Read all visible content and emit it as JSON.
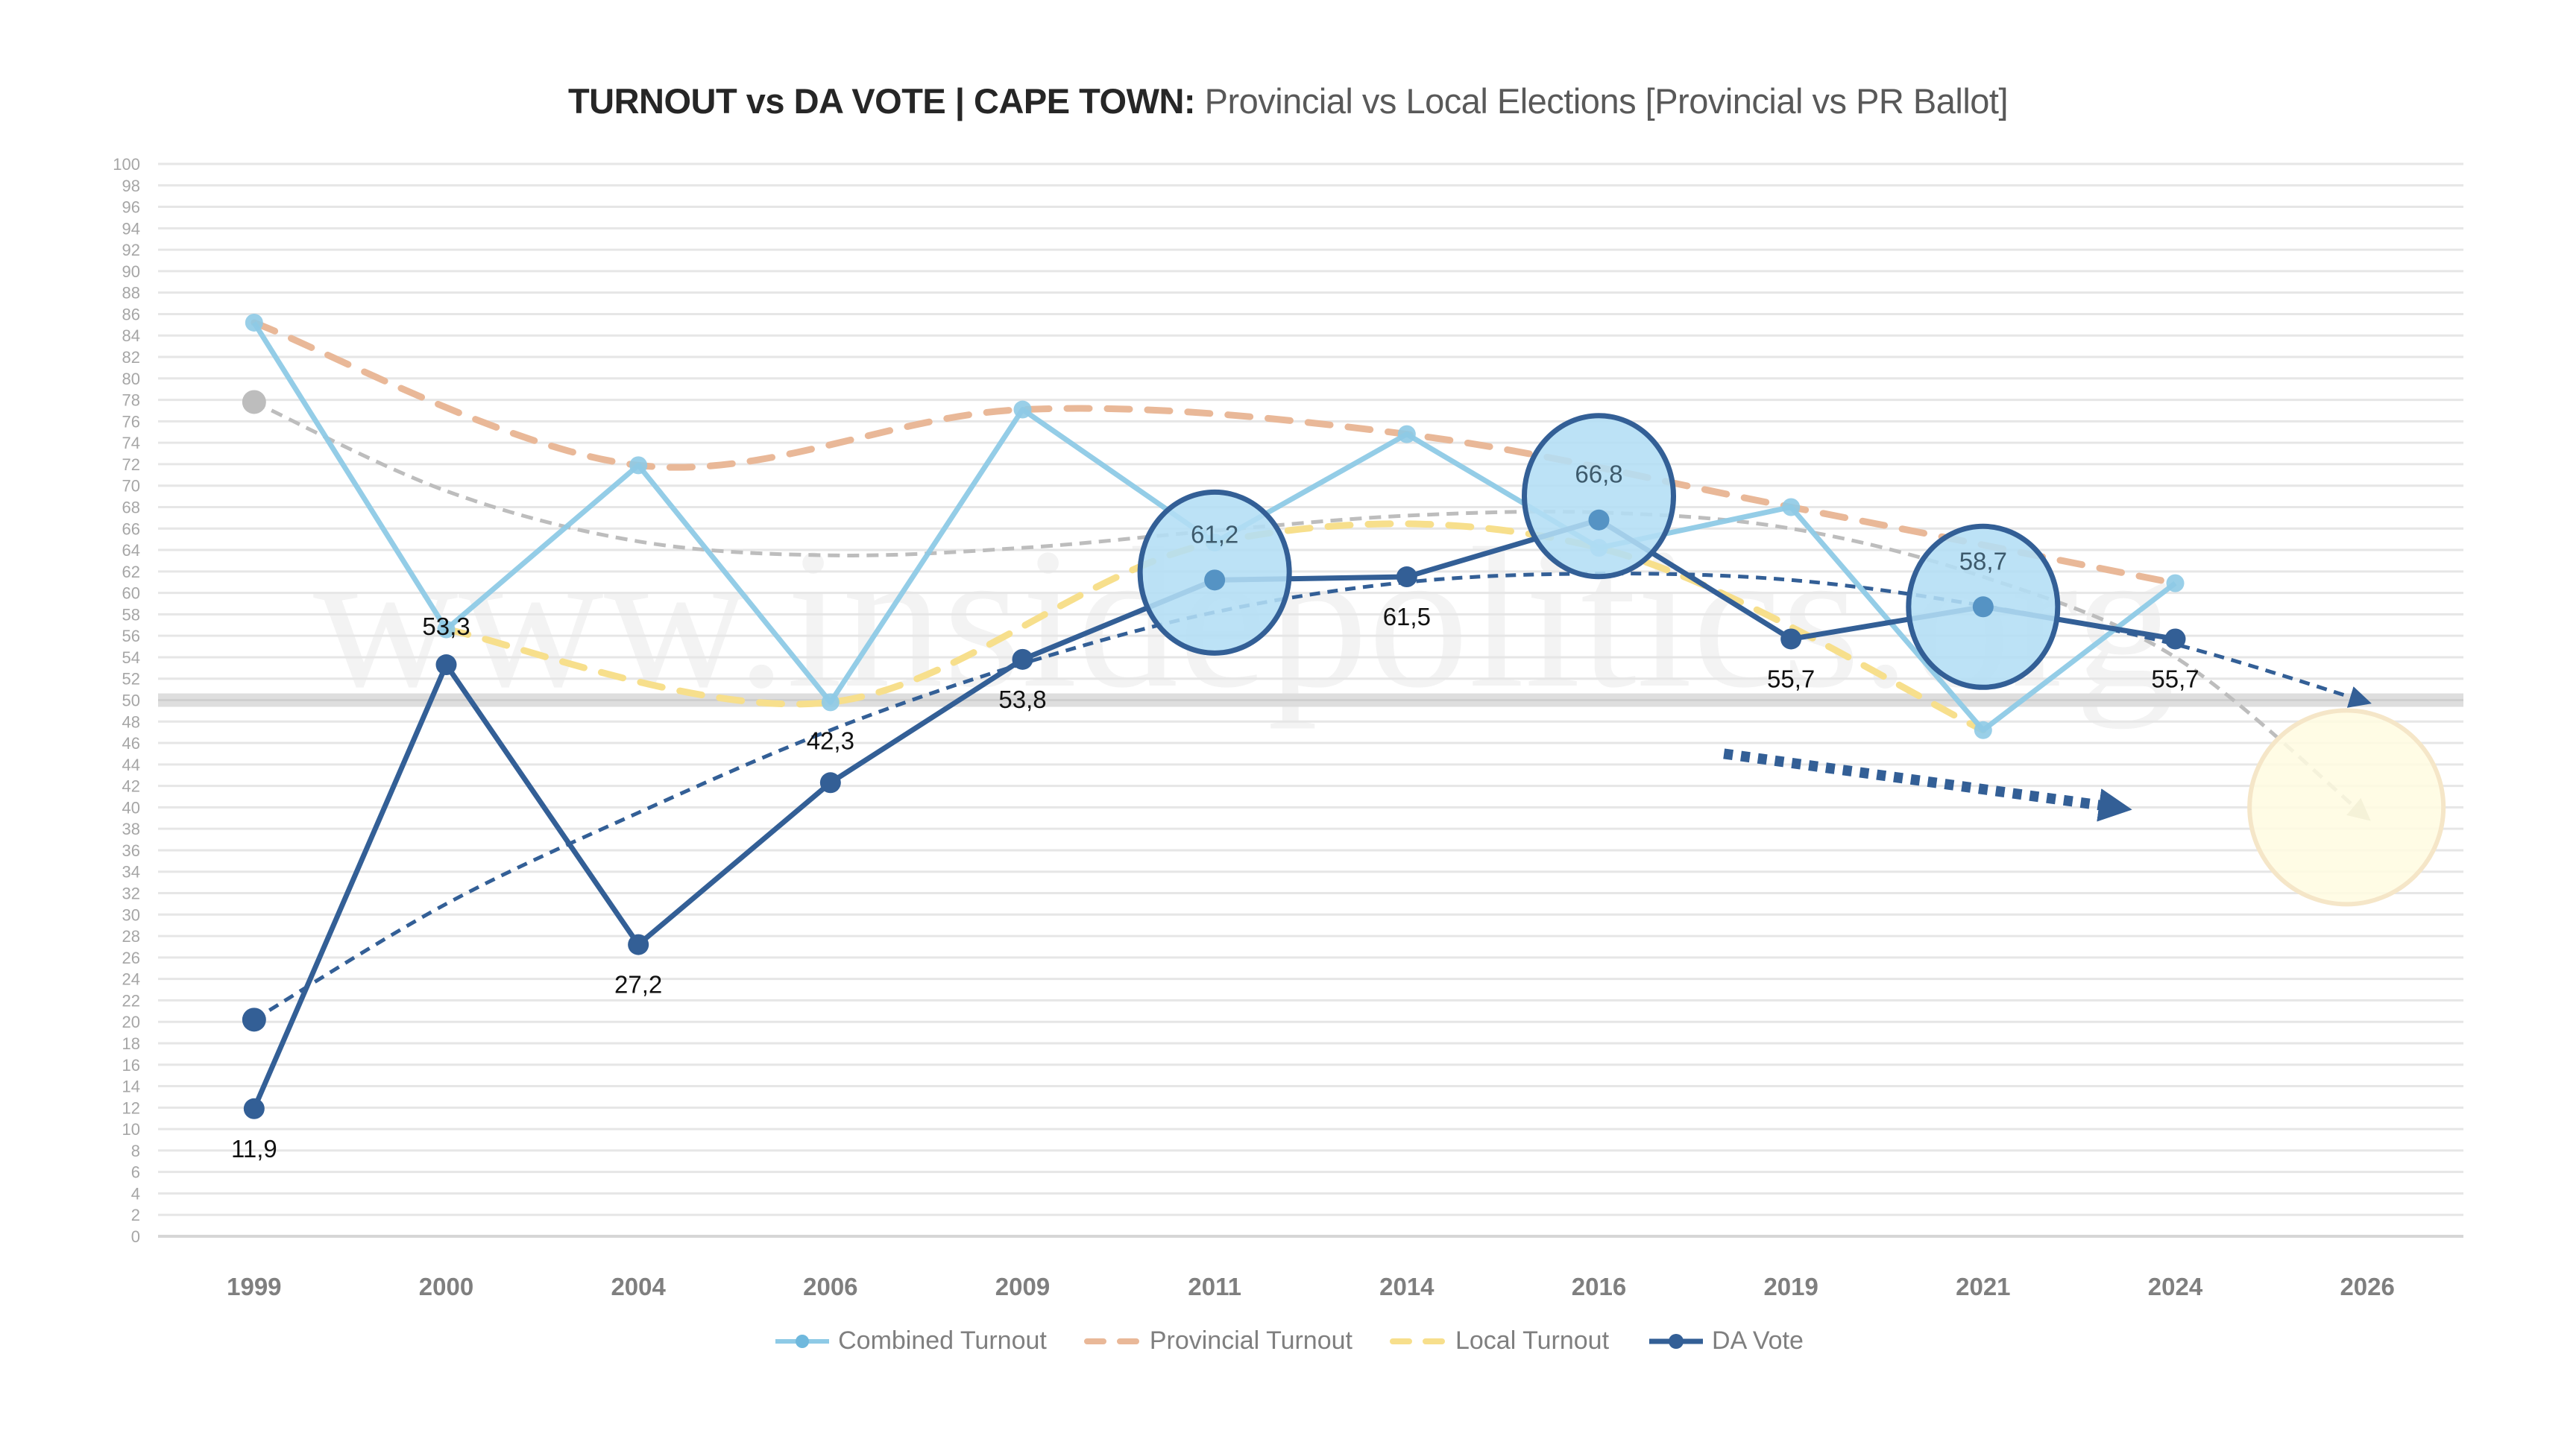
{
  "title": {
    "bold": "TURNOUT vs DA VOTE | CAPE TOWN:",
    "light": " Provincial vs Local Elections [Provincial vs PR Ballot]"
  },
  "watermark": "www.insidepolitics.org",
  "colors": {
    "combined": "#8ecae6",
    "provincial": "#e9b898",
    "local": "#f7df8c",
    "da": "#335f96",
    "trend_gray": "#bfbfbf",
    "highlight_fill": "#b3def5",
    "future_circle": "#fffbe0"
  },
  "chart_data": {
    "type": "line",
    "title": "TURNOUT vs DA VOTE | CAPE TOWN: Provincial vs Local Elections [Provincial vs PR Ballot]",
    "xlabel": "",
    "ylabel": "",
    "ylim": [
      0,
      100
    ],
    "ytick_step": 2,
    "grid": true,
    "reference_line": 50,
    "categories": [
      "1999",
      "2000",
      "2004",
      "2006",
      "2009",
      "2011",
      "2014",
      "2016",
      "2019",
      "2021",
      "2024",
      "2026"
    ],
    "series": [
      {
        "name": "Combined Turnout",
        "style": "solid-marker",
        "values": [
          85.2,
          56.6,
          71.9,
          49.8,
          77.1,
          64.7,
          74.8,
          64.2,
          68.0,
          47.2,
          60.9,
          null
        ]
      },
      {
        "name": "Provincial Turnout",
        "style": "dashed-smooth",
        "values": [
          85.2,
          null,
          71.9,
          null,
          77.1,
          null,
          74.8,
          null,
          68.0,
          null,
          60.9,
          null
        ]
      },
      {
        "name": "Local Turnout",
        "style": "dashed-smooth",
        "values": [
          null,
          56.6,
          null,
          49.8,
          null,
          64.7,
          null,
          64.2,
          null,
          47.2,
          null,
          null
        ]
      },
      {
        "name": "DA Vote",
        "style": "solid-marker",
        "values": [
          11.9,
          53.3,
          27.2,
          42.3,
          53.8,
          61.2,
          61.5,
          66.8,
          55.7,
          58.7,
          55.7,
          null
        ],
        "labels": [
          "11,9",
          "53,3",
          "27,2",
          "42,3",
          "53,8",
          "61,2",
          "61,5",
          "66,8",
          "55,7",
          "58,7",
          "55,7",
          ""
        ]
      }
    ],
    "trendlines": [
      {
        "name": "Turnout trend",
        "color_key": "trend_gray",
        "values": [
          77.8,
          69.5,
          64.8,
          63.5,
          64.2,
          65.8,
          67.2,
          67.5,
          66.0,
          61.5,
          54.0,
          39.0
        ],
        "arrow_to_last": true
      },
      {
        "name": "DA trend",
        "color_key": "da",
        "values": [
          20.2,
          31.0,
          39.5,
          47.2,
          53.4,
          58.2,
          61.0,
          61.8,
          61.2,
          58.8,
          55.2,
          49.8
        ],
        "arrow_to_last": true
      }
    ],
    "highlighted_points": [
      "2011",
      "2016",
      "2021"
    ],
    "annotations": [
      {
        "type": "dotted-arrow",
        "from_category": "2019",
        "to_category": "2024",
        "from_value": 45,
        "to_value": 40
      },
      {
        "type": "circle",
        "category": "2026",
        "value": 40
      }
    ],
    "legend": {
      "position": "bottom",
      "items": [
        "Combined Turnout",
        "Provincial Turnout",
        "Local Turnout",
        "DA Vote"
      ]
    }
  }
}
